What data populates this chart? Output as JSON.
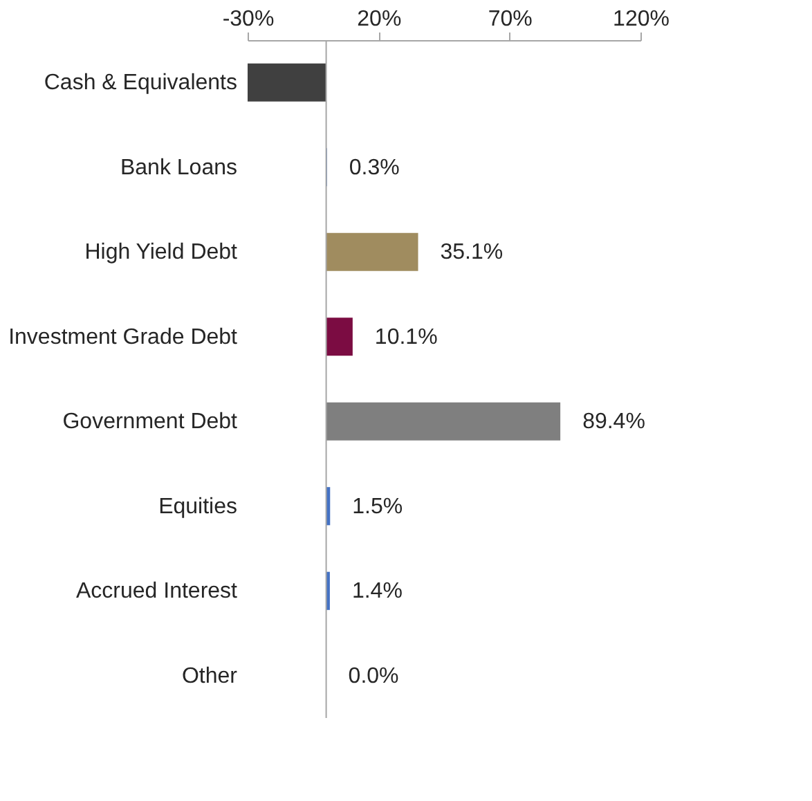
{
  "chart_data": {
    "type": "bar",
    "orientation": "horizontal",
    "categories": [
      "Cash & Equivalents",
      "Bank Loans",
      "High Yield Debt",
      "Investment Grade Debt",
      "Government Debt",
      "Equities",
      "Accrued Interest",
      "Other"
    ],
    "values": [
      -30,
      0.3,
      35.1,
      10.1,
      89.4,
      1.5,
      1.4,
      0.0
    ],
    "colors": [
      "#404040",
      "#4472c4",
      "#a08c5f",
      "#7b0c42",
      "#7f7f7f",
      "#4472c4",
      "#4472c4",
      "#4472c4"
    ],
    "value_labels": [
      null,
      "0.3%",
      "35.1%",
      "10.1%",
      "89.4%",
      "1.5%",
      "1.4%",
      "0.0%"
    ],
    "xlim": [
      -30,
      120
    ],
    "xticks": [
      {
        "value": -30,
        "label": "-30%"
      },
      {
        "value": 20,
        "label": "20%"
      },
      {
        "value": 70,
        "label": "70%"
      },
      {
        "value": 120,
        "label": "120%"
      }
    ],
    "grid": false
  }
}
